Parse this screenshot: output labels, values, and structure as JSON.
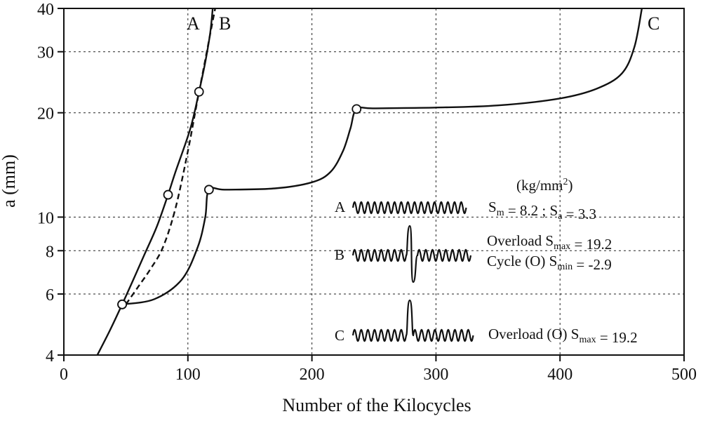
{
  "chart_data": {
    "type": "line",
    "xlabel": "Number of the Kilocycles",
    "ylabel": "a (mm)",
    "xlim": [
      0,
      500
    ],
    "ylim": [
      4,
      40
    ],
    "yscale": "log",
    "grid": "dotted",
    "xticks": [
      0,
      100,
      200,
      300,
      400,
      500
    ],
    "xtick_labels": [
      "0",
      "100",
      "200",
      "300",
      "400",
      "500"
    ],
    "yticks": [
      4,
      6,
      8,
      10,
      20,
      30,
      40
    ],
    "ytick_labels": [
      "4",
      "6",
      "8",
      "10",
      "20",
      "30",
      "40"
    ],
    "series": [
      {
        "name": "A",
        "line_style": "dashed",
        "points": [
          [
            50,
            5.6
          ],
          [
            60,
            6.3
          ],
          [
            70,
            7.1
          ],
          [
            80,
            8.2
          ],
          [
            90,
            10.6
          ],
          [
            100,
            15.5
          ],
          [
            108,
            22
          ],
          [
            116,
            31
          ],
          [
            122,
            40
          ]
        ]
      },
      {
        "name": "B",
        "line_style": "solid",
        "points": [
          [
            27,
            4.0
          ],
          [
            37,
            4.7
          ],
          [
            47,
            5.6
          ],
          [
            56,
            6.6
          ],
          [
            65,
            7.8
          ],
          [
            75,
            9.4
          ],
          [
            84,
            11.6
          ],
          [
            90,
            13.5
          ],
          [
            102,
            18
          ],
          [
            109,
            23
          ],
          [
            114,
            28
          ],
          [
            118,
            34
          ],
          [
            120,
            40
          ]
        ],
        "overload_markers": [
          [
            47,
            5.6
          ],
          [
            84,
            11.6
          ],
          [
            109,
            23
          ]
        ]
      },
      {
        "name": "C",
        "line_style": "solid",
        "points": [
          [
            47,
            5.6
          ],
          [
            73,
            5.8
          ],
          [
            95,
            6.6
          ],
          [
            108,
            8.2
          ],
          [
            114,
            10.0
          ],
          [
            117,
            12.0
          ],
          [
            130,
            12.0
          ],
          [
            170,
            12.1
          ],
          [
            200,
            12.6
          ],
          [
            215,
            13.5
          ],
          [
            225,
            15.5
          ],
          [
            231,
            18
          ],
          [
            236,
            20.5
          ],
          [
            250,
            20.6
          ],
          [
            300,
            20.7
          ],
          [
            350,
            21.0
          ],
          [
            400,
            22.0
          ],
          [
            430,
            23.5
          ],
          [
            450,
            26
          ],
          [
            460,
            31
          ],
          [
            466,
            40
          ]
        ],
        "overload_markers": [
          [
            47,
            5.6
          ],
          [
            117,
            12.0
          ],
          [
            236,
            20.5
          ]
        ]
      }
    ],
    "legend": {
      "units": "(kg/mm²)",
      "entries": [
        {
          "label": "A",
          "text_line1": "Sm = 8.2 ; Sa = 3.3",
          "text_line2": ""
        },
        {
          "label": "B",
          "text_line1": "Overload Smax = 19.2",
          "text_line2": "Cycle (O) Smin = -2.9"
        },
        {
          "label": "C",
          "text_line1": "Overload (O) Smax = 19.2",
          "text_line2": ""
        }
      ]
    }
  }
}
